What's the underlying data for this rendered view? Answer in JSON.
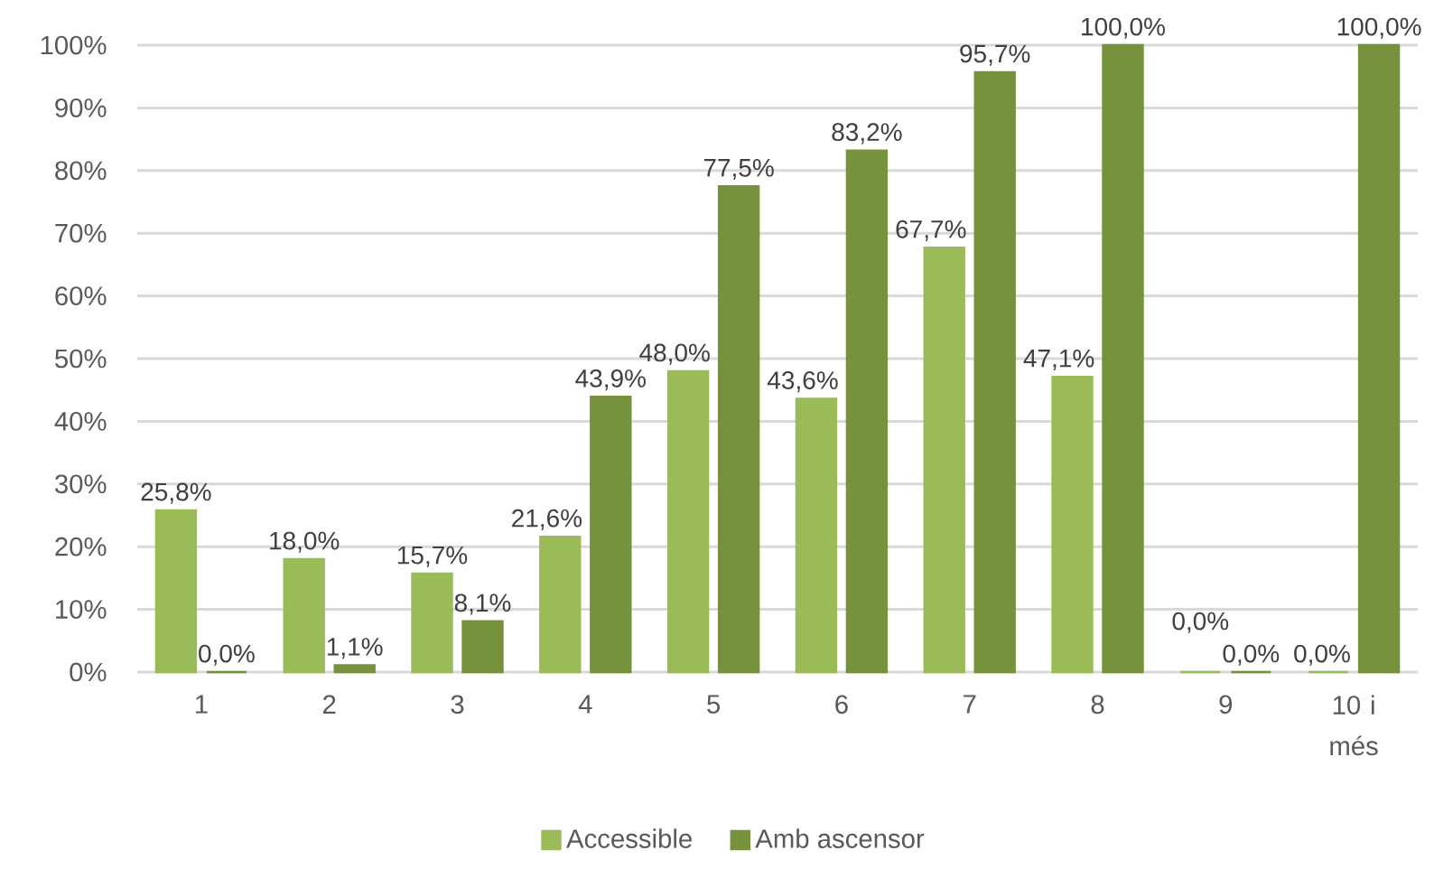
{
  "chart_data": {
    "type": "bar",
    "categories": [
      "1",
      "2",
      "3",
      "4",
      "5",
      "6",
      "7",
      "8",
      "9",
      "10 i més"
    ],
    "series": [
      {
        "name": "Accessible",
        "color": "#9bbb59",
        "values": [
          25.8,
          18.0,
          15.7,
          21.6,
          48.0,
          43.6,
          67.7,
          47.1,
          0.0,
          0.0
        ],
        "value_labels": [
          "25,8%",
          "18,0%",
          "15,7%",
          "21,6%",
          "48,0%",
          "43,6%",
          "67,7%",
          "47,1%",
          "0,0%",
          "0,0%"
        ]
      },
      {
        "name": "Amb ascensor",
        "color": "#76923c",
        "values": [
          0.0,
          1.1,
          8.1,
          43.9,
          77.5,
          83.2,
          95.7,
          100.0,
          0.0,
          100.0
        ],
        "value_labels": [
          "0,0%",
          "1,1%",
          "8,1%",
          "43,9%",
          "77,5%",
          "83,2%",
          "95,7%",
          "100,0%",
          "0,0%",
          "100,0%"
        ]
      }
    ],
    "ylim": [
      0,
      100
    ],
    "yticks": [
      {
        "value": 0,
        "label": "0%"
      },
      {
        "value": 10,
        "label": "10%"
      },
      {
        "value": 20,
        "label": "20%"
      },
      {
        "value": 30,
        "label": "30%"
      },
      {
        "value": 40,
        "label": "40%"
      },
      {
        "value": 50,
        "label": "50%"
      },
      {
        "value": 60,
        "label": "60%"
      },
      {
        "value": 70,
        "label": "70%"
      },
      {
        "value": 80,
        "label": "80%"
      },
      {
        "value": 90,
        "label": "90%"
      },
      {
        "value": 100,
        "label": "100%"
      }
    ],
    "grid": "y",
    "legend": "bottom"
  }
}
